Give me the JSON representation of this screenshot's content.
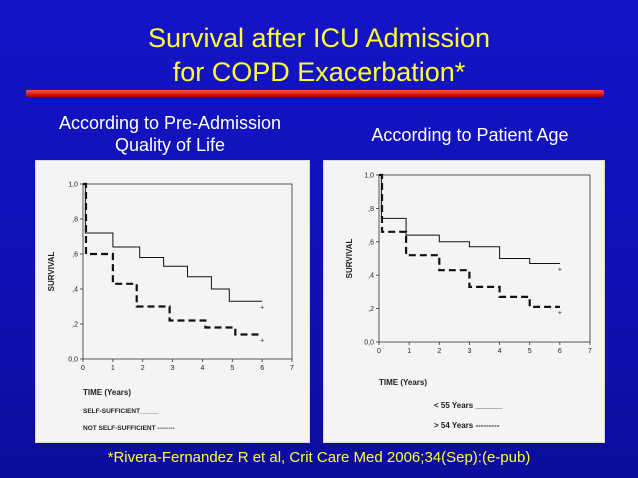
{
  "slide": {
    "title_line1": "Survival after ICU Admission",
    "title_line2": "for COPD Exacerbation*",
    "subtitle_left_line1": "According to Pre-Admission",
    "subtitle_left_line2": "Quality of Life",
    "subtitle_right": "According to Patient Age",
    "footer": "*Rivera-Fernandez R et al, Crit Care Med 2006;34(Sep):(e-pub)"
  },
  "colors": {
    "background": "#1212c0",
    "title": "#ffff33",
    "rule": "#d81a10",
    "text": "#ffffff"
  },
  "chart_data": [
    {
      "type": "line",
      "subtype": "kaplan-meier step",
      "ylabel": "SURVIVAL",
      "xlabel": "TIME (Years)",
      "xlim": [
        0,
        7
      ],
      "ylim": [
        0,
        1
      ],
      "xticks": [
        "0",
        "1",
        "2",
        "3",
        "4",
        "5",
        "6",
        "7"
      ],
      "yticks": [
        "0,0",
        ",2",
        ",4",
        ",6",
        ",8",
        "1,0"
      ],
      "series": [
        {
          "name": "SELF-SUFFICIENT",
          "style": "solid",
          "x": [
            0,
            0.08,
            0.08,
            1.0,
            1.0,
            1.9,
            1.9,
            2.7,
            2.7,
            3.5,
            3.5,
            4.3,
            4.3,
            4.9,
            4.9,
            6.0
          ],
          "y": [
            1.0,
            1.0,
            0.72,
            0.72,
            0.64,
            0.64,
            0.58,
            0.58,
            0.53,
            0.53,
            0.47,
            0.47,
            0.4,
            0.4,
            0.33,
            0.33
          ]
        },
        {
          "name": "NOT SELF-SUFFICIENT",
          "style": "dashed",
          "x": [
            0,
            0.1,
            0.1,
            1.0,
            1.0,
            1.8,
            1.8,
            2.9,
            2.9,
            4.1,
            4.1,
            5.1,
            5.1,
            6.0
          ],
          "y": [
            1.0,
            1.0,
            0.6,
            0.6,
            0.43,
            0.43,
            0.3,
            0.3,
            0.22,
            0.22,
            0.18,
            0.18,
            0.14,
            0.14
          ]
        }
      ],
      "legend": [
        {
          "label": "SELF-SUFFICIENT_____"
        },
        {
          "label": "NOT SELF-SUFFICIENT --------"
        }
      ]
    },
    {
      "type": "line",
      "subtype": "kaplan-meier step",
      "ylabel": "SURVIVAL",
      "xlabel": "TIME (Years)",
      "xlim": [
        0,
        7
      ],
      "ylim": [
        0,
        1
      ],
      "xticks": [
        "0",
        "1",
        "2",
        "3",
        "4",
        "5",
        "6",
        "7"
      ],
      "yticks": [
        "0,0",
        ",2",
        ",4",
        ",6",
        ",8",
        "1,0"
      ],
      "series": [
        {
          "name": "< 55  Years",
          "style": "solid",
          "x": [
            0,
            0.08,
            0.08,
            0.9,
            0.9,
            2.0,
            2.0,
            3.0,
            3.0,
            4.0,
            4.0,
            5.0,
            5.0,
            6.0
          ],
          "y": [
            1.0,
            1.0,
            0.74,
            0.74,
            0.64,
            0.64,
            0.6,
            0.6,
            0.57,
            0.57,
            0.5,
            0.5,
            0.47,
            0.47
          ]
        },
        {
          "name": "> 54 Years",
          "style": "dashed",
          "x": [
            0,
            0.1,
            0.1,
            0.9,
            0.9,
            2.0,
            2.0,
            3.0,
            3.0,
            4.0,
            4.0,
            5.0,
            5.0,
            6.0
          ],
          "y": [
            1.0,
            1.0,
            0.66,
            0.66,
            0.52,
            0.52,
            0.43,
            0.43,
            0.33,
            0.33,
            0.27,
            0.27,
            0.21,
            0.21
          ]
        }
      ],
      "legend": [
        {
          "label": "< 55  Years  ______"
        },
        {
          "label": "> 54 Years  ---------"
        }
      ]
    }
  ]
}
